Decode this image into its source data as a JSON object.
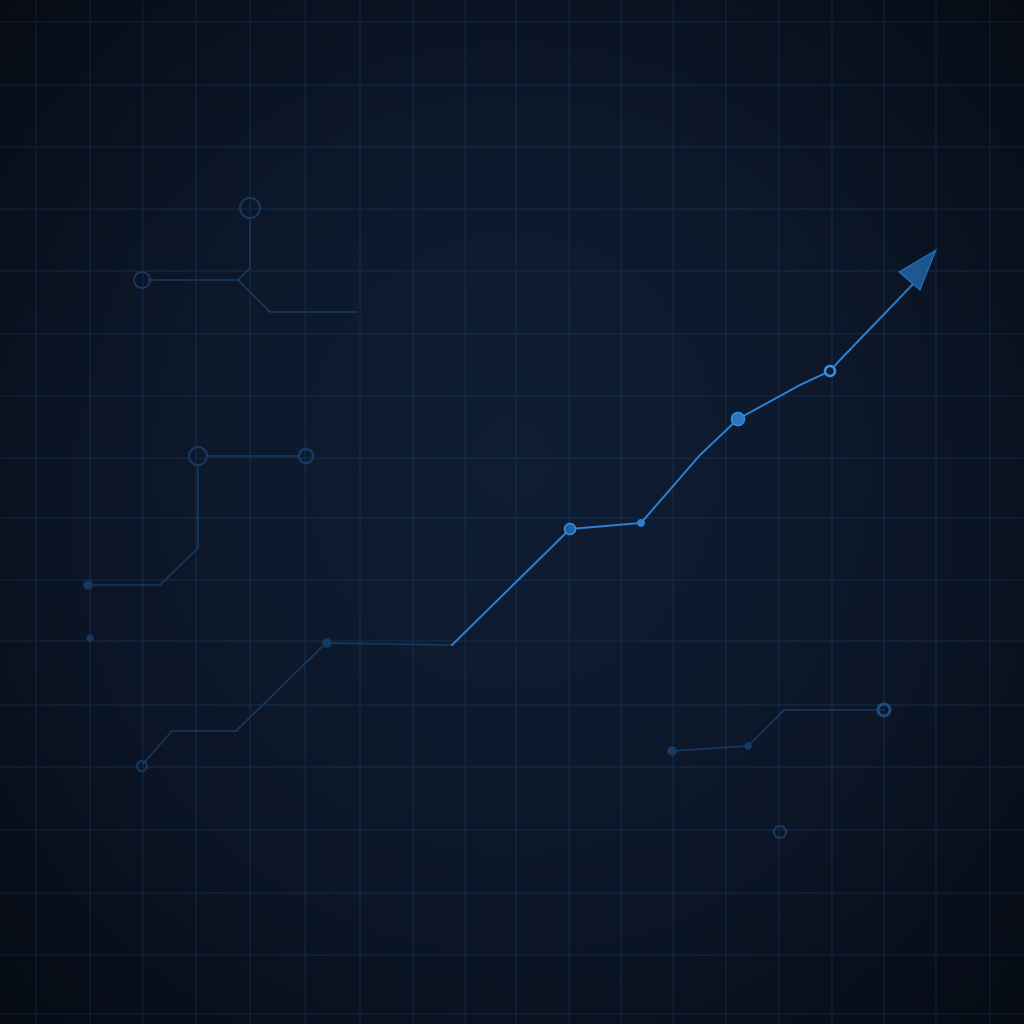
{
  "colors": {
    "background": "#0c1628",
    "grid": "#14365e",
    "trend": "#2f7fd0",
    "trend_bright": "#3a8ee0",
    "arrow": "#1f5f9e",
    "circuit": "#173a62",
    "circuit_node": "#1e4c7e"
  },
  "icons": {
    "trend_arrow": "arrow-up-right-icon",
    "node": "circle-node-icon"
  }
}
